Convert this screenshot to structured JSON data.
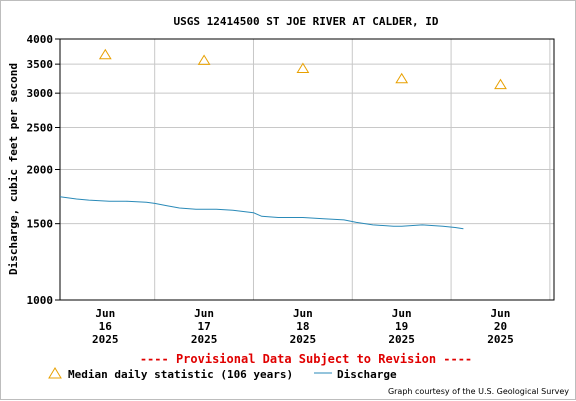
{
  "chart_data": {
    "type": "line",
    "title": "USGS 12414500 ST JOE RIVER AT CALDER, ID",
    "ylabel": "Discharge, cubic feet per second",
    "yscale": "log",
    "ylim": [
      1000,
      4000
    ],
    "yticks": [
      1000,
      1500,
      2000,
      2500,
      3000,
      3500,
      4000
    ],
    "xlim": [
      "2025-06-15T13:00",
      "2025-06-20T13:00"
    ],
    "xticks": [
      {
        "at": "2025-06-16T00:00",
        "mon": "Jun",
        "day": "16",
        "year": "2025"
      },
      {
        "at": "2025-06-17T00:00",
        "mon": "Jun",
        "day": "17",
        "year": "2025"
      },
      {
        "at": "2025-06-18T00:00",
        "mon": "Jun",
        "day": "18",
        "year": "2025"
      },
      {
        "at": "2025-06-19T00:00",
        "mon": "Jun",
        "day": "19",
        "year": "2025"
      },
      {
        "at": "2025-06-20T00:00",
        "mon": "Jun",
        "day": "20",
        "year": "2025"
      }
    ],
    "grid": true,
    "series": [
      {
        "name": "Median daily statistic (106 years)",
        "marker": "triangle",
        "color": "#e8a000",
        "points": [
          {
            "x": "2025-06-16T00:00",
            "y": 3680
          },
          {
            "x": "2025-06-17T00:00",
            "y": 3570
          },
          {
            "x": "2025-06-18T00:00",
            "y": 3420
          },
          {
            "x": "2025-06-19T00:00",
            "y": 3240
          },
          {
            "x": "2025-06-20T00:00",
            "y": 3140
          }
        ]
      },
      {
        "name": "Discharge",
        "color": "#2a8ab8",
        "points": [
          {
            "x": "2025-06-15T13:00",
            "y": 1730
          },
          {
            "x": "2025-06-15T17:00",
            "y": 1710
          },
          {
            "x": "2025-06-15T20:00",
            "y": 1700
          },
          {
            "x": "2025-06-16T01:00",
            "y": 1690
          },
          {
            "x": "2025-06-16T05:00",
            "y": 1690
          },
          {
            "x": "2025-06-16T10:00",
            "y": 1680
          },
          {
            "x": "2025-06-16T12:00",
            "y": 1670
          },
          {
            "x": "2025-06-16T15:00",
            "y": 1650
          },
          {
            "x": "2025-06-16T18:00",
            "y": 1630
          },
          {
            "x": "2025-06-16T22:00",
            "y": 1620
          },
          {
            "x": "2025-06-17T03:00",
            "y": 1620
          },
          {
            "x": "2025-06-17T07:00",
            "y": 1610
          },
          {
            "x": "2025-06-17T12:00",
            "y": 1590
          },
          {
            "x": "2025-06-17T14:00",
            "y": 1560
          },
          {
            "x": "2025-06-17T18:00",
            "y": 1550
          },
          {
            "x": "2025-06-18T00:00",
            "y": 1550
          },
          {
            "x": "2025-06-18T05:00",
            "y": 1540
          },
          {
            "x": "2025-06-18T10:00",
            "y": 1530
          },
          {
            "x": "2025-06-18T13:00",
            "y": 1510
          },
          {
            "x": "2025-06-18T17:00",
            "y": 1490
          },
          {
            "x": "2025-06-18T22:00",
            "y": 1480
          },
          {
            "x": "2025-06-19T00:00",
            "y": 1480
          },
          {
            "x": "2025-06-19T05:00",
            "y": 1490
          },
          {
            "x": "2025-06-19T10:00",
            "y": 1480
          },
          {
            "x": "2025-06-19T13:00",
            "y": 1470
          },
          {
            "x": "2025-06-19T15:00",
            "y": 1460
          }
        ]
      }
    ]
  },
  "provisional_note": "---- Provisional Data Subject to Revision ----",
  "credit": "Graph courtesy of the U.S. Geological Survey",
  "colors": {
    "grid": "#c8c8c8",
    "triangle": "#e8a000",
    "discharge": "#2a8ab8",
    "provisional": "#e00000"
  }
}
